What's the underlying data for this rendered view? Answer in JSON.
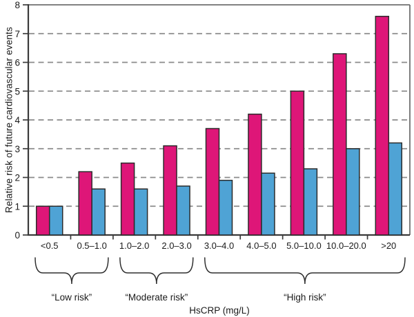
{
  "chart_data": {
    "type": "bar",
    "title": "",
    "ylabel": "Relative risk of future cardiovascular events",
    "xlabel": "HsCRP (mg/L)",
    "ylim": [
      0,
      8
    ],
    "yticks": [
      0,
      1,
      2,
      3,
      4,
      5,
      6,
      7,
      8
    ],
    "grid": "horizontal-dashed",
    "legend_position": "none",
    "categories": [
      "<0.5",
      "0.5–1.0",
      "1.0–2.0",
      "2.0–3.0",
      "3.0–4.0",
      "4.0–5.0",
      "5.0–10.0",
      "10.0–20.0",
      ">20"
    ],
    "series": [
      {
        "name": "series-1-magenta",
        "color": "#DE1678",
        "values": [
          1.0,
          2.2,
          2.5,
          3.1,
          3.7,
          4.2,
          5.0,
          6.3,
          7.6
        ]
      },
      {
        "name": "series-2-blue",
        "color": "#4FA3D5",
        "values": [
          1.0,
          1.6,
          1.6,
          1.7,
          1.9,
          2.15,
          2.3,
          3.0,
          3.2
        ]
      }
    ],
    "risk_groups": [
      {
        "label": "“Low risk”",
        "from_category": 0,
        "to_category": 1
      },
      {
        "label": "“Moderate risk”",
        "from_category": 2,
        "to_category": 3
      },
      {
        "label": "“High risk”",
        "from_category": 4,
        "to_category": 8
      }
    ],
    "colors": {
      "bar_outline": "#2b2b2b",
      "grid": "#8a8a8a",
      "axis": "#3a3a3a",
      "box": "#6f6f6f",
      "text": "#1a1a1a",
      "brace": "#2f2f2f"
    }
  }
}
